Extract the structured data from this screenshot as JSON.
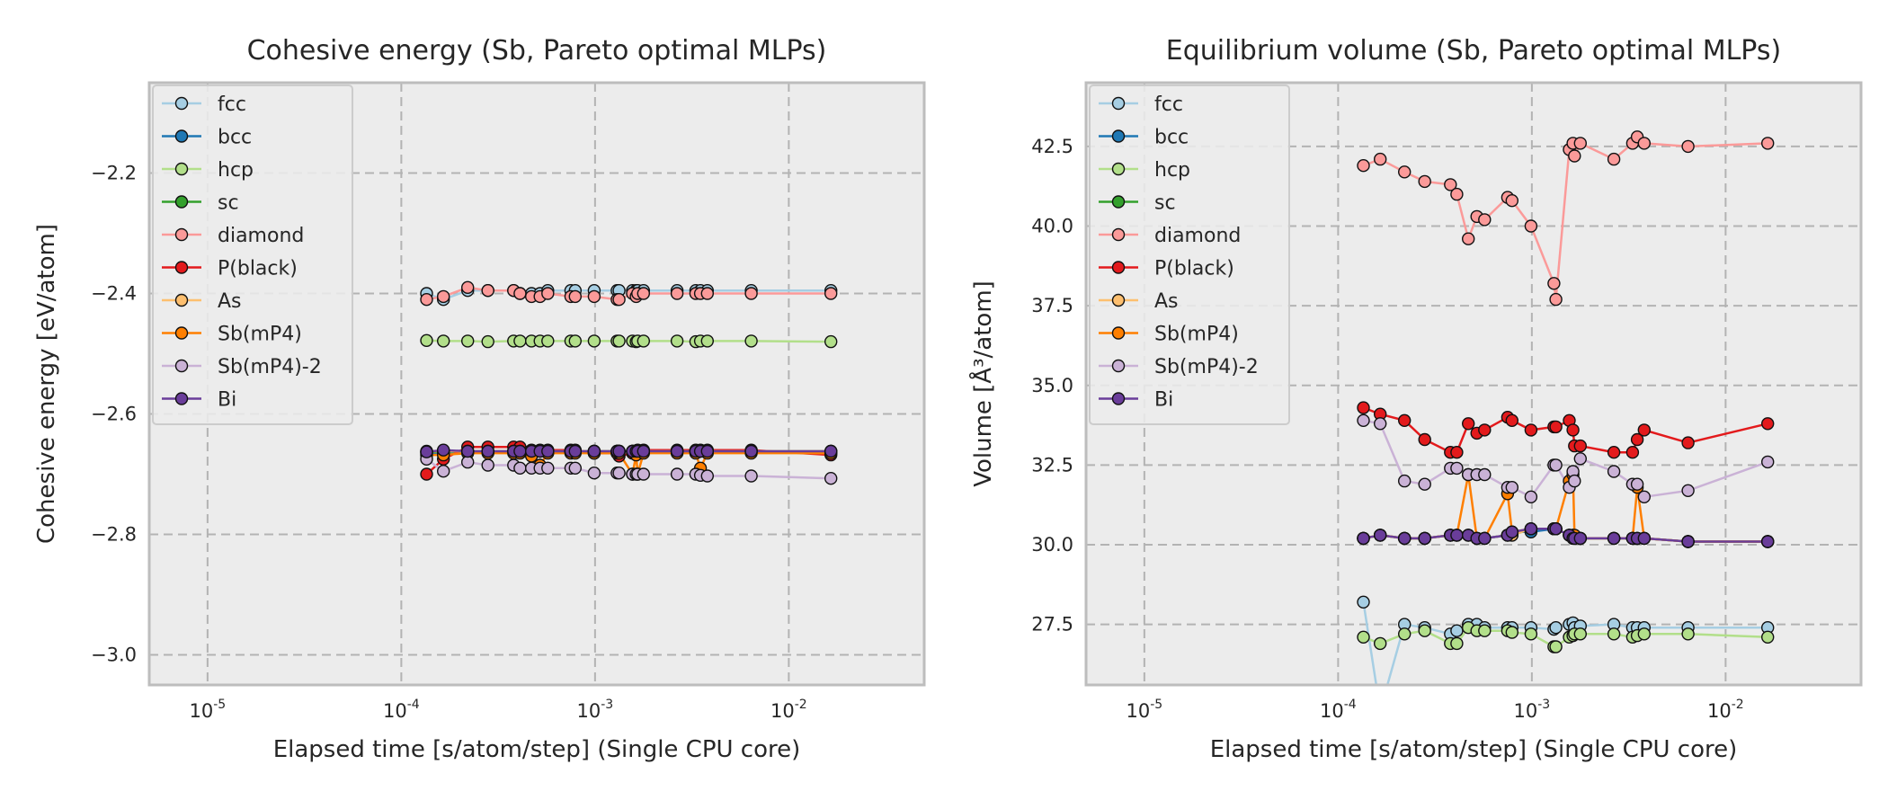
{
  "chart_data": [
    {
      "type": "line",
      "title": "Cohesive energy (Sb, Pareto optimal MLPs)",
      "xlabel": "Elapsed time [s/atom/step] (Single CPU core)",
      "ylabel": "Cohesive energy [eV/atom]",
      "xscale": "log",
      "xlim": [
        5e-06,
        0.05
      ],
      "ylim": [
        -3.05,
        -2.05
      ],
      "xticks": [
        {
          "value": 1e-05,
          "base": "10",
          "exp": "-5"
        },
        {
          "value": 0.0001,
          "base": "10",
          "exp": "-4"
        },
        {
          "value": 0.001,
          "base": "10",
          "exp": "-3"
        },
        {
          "value": 0.01,
          "base": "10",
          "exp": "-2"
        }
      ],
      "yticks": [
        {
          "value": -3.0,
          "label": "−3.0"
        },
        {
          "value": -2.8,
          "label": "−2.8"
        },
        {
          "value": -2.6,
          "label": "−2.6"
        },
        {
          "value": -2.4,
          "label": "−2.4"
        },
        {
          "value": -2.2,
          "label": "−2.2"
        }
      ],
      "grid": true,
      "legend_position": "upper-left",
      "x": [
        0.000135,
        0.000165,
        0.00022,
        0.00028,
        0.00038,
        0.00041,
        0.00047,
        0.00052,
        0.00057,
        0.00075,
        0.00079,
        0.00099,
        0.0013,
        0.00133,
        0.00156,
        0.00163,
        0.00166,
        0.00178,
        0.00265,
        0.00331,
        0.0035,
        0.0038,
        0.0064,
        0.0165
      ],
      "series": [
        {
          "name": "fcc",
          "color": "#a6cee3",
          "values": [
            -2.4,
            -2.41,
            -2.395,
            -2.395,
            -2.395,
            -2.4,
            -2.4,
            -2.4,
            -2.395,
            -2.395,
            -2.395,
            -2.395,
            -2.395,
            -2.395,
            -2.395,
            -2.395,
            -2.395,
            -2.395,
            -2.395,
            -2.395,
            -2.395,
            -2.395,
            -2.395,
            -2.395
          ]
        },
        {
          "name": "bcc",
          "color": "#1f78b4",
          "values": [
            -2.665,
            -2.665,
            -2.663,
            -2.663,
            -2.662,
            -2.662,
            -2.662,
            -2.662,
            -2.662,
            -2.662,
            -2.662,
            -2.662,
            -2.662,
            -2.662,
            -2.662,
            -2.662,
            -2.662,
            -2.662,
            -2.662,
            -2.662,
            -2.662,
            -2.662,
            -2.662,
            -2.664
          ]
        },
        {
          "name": "hcp",
          "color": "#b2df8a",
          "values": [
            -2.478,
            -2.479,
            -2.479,
            -2.48,
            -2.479,
            -2.479,
            -2.479,
            -2.479,
            -2.479,
            -2.479,
            -2.479,
            -2.479,
            -2.479,
            -2.479,
            -2.479,
            -2.48,
            -2.479,
            -2.479,
            -2.479,
            -2.48,
            -2.479,
            -2.479,
            -2.479,
            -2.48
          ]
        },
        {
          "name": "sc",
          "color": "#33a02c",
          "values": [
            -2.663,
            -2.663,
            -2.662,
            -2.662,
            -2.662,
            -2.662,
            -2.662,
            -2.662,
            -2.662,
            -2.662,
            -2.662,
            -2.662,
            -2.662,
            -2.662,
            -2.662,
            -2.662,
            -2.662,
            -2.662,
            -2.662,
            -2.662,
            -2.662,
            -2.662,
            -2.662,
            -2.662
          ]
        },
        {
          "name": "diamond",
          "color": "#fb9a99",
          "values": [
            -2.41,
            -2.405,
            -2.39,
            -2.395,
            -2.395,
            -2.4,
            -2.405,
            -2.405,
            -2.4,
            -2.405,
            -2.405,
            -2.405,
            -2.41,
            -2.41,
            -2.4,
            -2.405,
            -2.4,
            -2.4,
            -2.4,
            -2.4,
            -2.4,
            -2.4,
            -2.4,
            -2.4
          ]
        },
        {
          "name": "P(black)",
          "color": "#e31a1c",
          "values": [
            -2.7,
            -2.675,
            -2.655,
            -2.655,
            -2.655,
            -2.655,
            -2.66,
            -2.66,
            -2.66,
            -2.66,
            -2.66,
            -2.665,
            -2.665,
            -2.67,
            -2.665,
            -2.665,
            -2.66,
            -2.66,
            -2.66,
            -2.66,
            -2.66,
            -2.66,
            -2.66,
            -2.668
          ]
        },
        {
          "name": "As",
          "color": "#fdbf6f",
          "values": [
            -2.662,
            -2.662,
            -2.662,
            -2.662,
            -2.662,
            -2.662,
            -2.662,
            -2.662,
            -2.662,
            -2.662,
            -2.662,
            -2.662,
            -2.662,
            -2.662,
            -2.662,
            -2.662,
            -2.662,
            -2.662,
            -2.662,
            -2.662,
            -2.662,
            -2.662,
            -2.662,
            -2.662
          ]
        },
        {
          "name": "Sb(mP4)",
          "color": "#ff7f00",
          "values": [
            -2.668,
            -2.668,
            -2.665,
            -2.665,
            -2.665,
            -2.665,
            -2.67,
            -2.685,
            -2.665,
            -2.665,
            -2.665,
            -2.665,
            -2.665,
            -2.665,
            -2.7,
            -2.668,
            -2.7,
            -2.665,
            -2.665,
            -2.665,
            -2.69,
            -2.665,
            -2.665,
            -2.665
          ]
        },
        {
          "name": "Sb(mP4)-2",
          "color": "#cab2d6",
          "values": [
            -2.675,
            -2.695,
            -2.68,
            -2.685,
            -2.685,
            -2.69,
            -2.69,
            -2.69,
            -2.69,
            -2.69,
            -2.69,
            -2.698,
            -2.698,
            -2.698,
            -2.7,
            -2.7,
            -2.7,
            -2.7,
            -2.7,
            -2.7,
            -2.702,
            -2.703,
            -2.703,
            -2.707
          ]
        },
        {
          "name": "Bi",
          "color": "#6a3d9a",
          "values": [
            -2.663,
            -2.66,
            -2.662,
            -2.662,
            -2.662,
            -2.662,
            -2.662,
            -2.662,
            -2.662,
            -2.662,
            -2.662,
            -2.662,
            -2.662,
            -2.662,
            -2.662,
            -2.662,
            -2.662,
            -2.662,
            -2.662,
            -2.662,
            -2.662,
            -2.662,
            -2.662,
            -2.662
          ]
        }
      ]
    },
    {
      "type": "line",
      "title": "Equilibrium volume (Sb, Pareto optimal MLPs)",
      "xlabel": "Elapsed time [s/atom/step] (Single CPU core)",
      "ylabel": "Volume [Å³/atom]",
      "xscale": "log",
      "xlim": [
        5e-06,
        0.05
      ],
      "ylim": [
        25.6,
        44.5
      ],
      "xticks": [
        {
          "value": 1e-05,
          "base": "10",
          "exp": "-5"
        },
        {
          "value": 0.0001,
          "base": "10",
          "exp": "-4"
        },
        {
          "value": 0.001,
          "base": "10",
          "exp": "-3"
        },
        {
          "value": 0.01,
          "base": "10",
          "exp": "-2"
        }
      ],
      "yticks": [
        {
          "value": 27.5,
          "label": "27.5"
        },
        {
          "value": 30.0,
          "label": "30.0"
        },
        {
          "value": 32.5,
          "label": "32.5"
        },
        {
          "value": 35.0,
          "label": "35.0"
        },
        {
          "value": 37.5,
          "label": "37.5"
        },
        {
          "value": 40.0,
          "label": "40.0"
        },
        {
          "value": 42.5,
          "label": "42.5"
        }
      ],
      "grid": true,
      "legend_position": "upper-left",
      "x": [
        0.000135,
        0.000165,
        0.00022,
        0.00028,
        0.00038,
        0.00041,
        0.00047,
        0.00052,
        0.00057,
        0.00075,
        0.00079,
        0.00099,
        0.0013,
        0.00133,
        0.00156,
        0.00163,
        0.00166,
        0.00178,
        0.00265,
        0.00331,
        0.0035,
        0.0038,
        0.0064,
        0.0165
      ],
      "series": [
        {
          "name": "fcc",
          "color": "#a6cee3",
          "values": [
            28.2,
            24.8,
            27.5,
            27.4,
            27.2,
            27.3,
            27.5,
            27.5,
            27.4,
            27.4,
            27.4,
            27.4,
            27.35,
            27.4,
            27.5,
            27.55,
            27.4,
            27.45,
            27.5,
            27.4,
            27.4,
            27.4,
            27.4,
            27.4
          ]
        },
        {
          "name": "bcc",
          "color": "#1f78b4",
          "values": [
            30.2,
            30.3,
            30.2,
            30.2,
            30.3,
            30.3,
            30.3,
            30.2,
            30.2,
            30.3,
            30.4,
            30.4,
            30.5,
            30.5,
            30.3,
            30.2,
            30.2,
            30.2,
            30.2,
            30.2,
            30.2,
            30.2,
            30.1,
            30.1
          ]
        },
        {
          "name": "hcp",
          "color": "#b2df8a",
          "values": [
            27.1,
            26.9,
            27.2,
            27.3,
            26.9,
            26.9,
            27.4,
            27.3,
            27.3,
            27.3,
            27.25,
            27.2,
            26.8,
            26.8,
            27.1,
            27.15,
            27.2,
            27.2,
            27.2,
            27.1,
            27.15,
            27.2,
            27.2,
            27.1
          ]
        },
        {
          "name": "sc",
          "color": "#33a02c",
          "values": [
            30.2,
            30.3,
            30.2,
            30.2,
            30.3,
            30.3,
            30.3,
            30.2,
            30.2,
            30.3,
            30.3,
            30.5,
            30.5,
            30.5,
            30.3,
            30.3,
            30.2,
            30.2,
            30.2,
            30.2,
            30.2,
            30.2,
            30.1,
            30.1
          ]
        },
        {
          "name": "diamond",
          "color": "#fb9a99",
          "values": [
            41.9,
            42.1,
            41.7,
            41.4,
            41.3,
            41.0,
            39.6,
            40.3,
            40.2,
            40.9,
            40.8,
            40.0,
            38.2,
            37.7,
            42.4,
            42.6,
            42.2,
            42.6,
            42.1,
            42.6,
            42.8,
            42.6,
            42.5,
            42.6
          ]
        },
        {
          "name": "P(black)",
          "color": "#e31a1c",
          "values": [
            34.3,
            34.1,
            33.9,
            33.3,
            32.9,
            32.9,
            33.8,
            33.5,
            33.6,
            34.0,
            33.9,
            33.6,
            33.7,
            33.7,
            33.9,
            33.6,
            33.1,
            33.1,
            32.9,
            32.9,
            33.3,
            33.6,
            33.2,
            33.8
          ]
        },
        {
          "name": "As",
          "color": "#fdbf6f",
          "values": [
            30.2,
            30.3,
            30.2,
            30.2,
            30.3,
            30.3,
            30.3,
            30.2,
            30.2,
            30.3,
            30.3,
            30.5,
            30.5,
            30.5,
            30.3,
            30.3,
            30.2,
            30.2,
            30.2,
            30.2,
            30.2,
            30.2,
            30.1,
            30.1
          ]
        },
        {
          "name": "Sb(mP4)",
          "color": "#ff7f00",
          "values": [
            30.2,
            30.3,
            30.2,
            30.2,
            30.3,
            30.3,
            32.2,
            30.2,
            30.2,
            31.6,
            30.4,
            30.5,
            30.5,
            30.5,
            32.0,
            32.2,
            30.3,
            30.2,
            30.2,
            30.2,
            31.8,
            30.2,
            30.1,
            30.1
          ]
        },
        {
          "name": "Sb(mP4)-2",
          "color": "#cab2d6",
          "values": [
            33.9,
            33.8,
            32.0,
            31.9,
            32.4,
            32.4,
            32.2,
            32.2,
            32.2,
            31.8,
            31.8,
            31.5,
            32.5,
            32.5,
            31.8,
            32.3,
            32.0,
            32.7,
            32.3,
            31.9,
            31.9,
            31.5,
            31.7,
            32.6
          ]
        },
        {
          "name": "Bi",
          "color": "#6a3d9a",
          "values": [
            30.2,
            30.3,
            30.2,
            30.2,
            30.3,
            30.3,
            30.3,
            30.2,
            30.2,
            30.3,
            30.4,
            30.5,
            30.5,
            30.5,
            30.3,
            30.2,
            30.2,
            30.2,
            30.2,
            30.2,
            30.2,
            30.2,
            30.1,
            30.1
          ]
        }
      ]
    }
  ]
}
